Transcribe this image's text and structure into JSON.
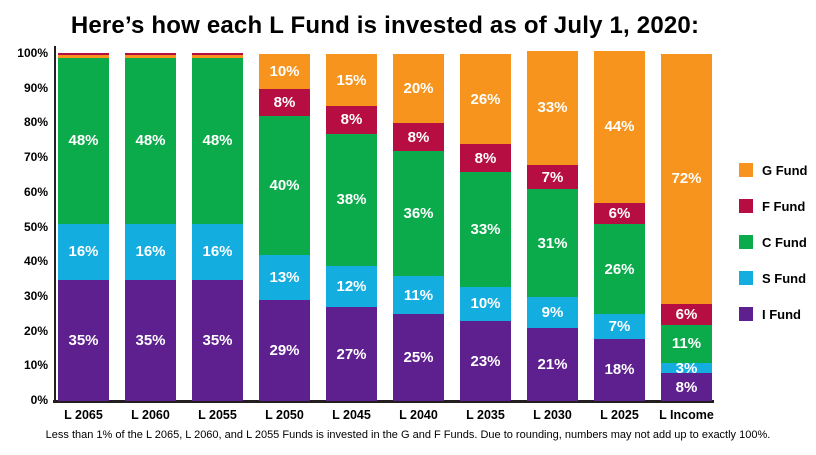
{
  "title": "Here’s how each L Fund is invested as of July 1, 2020:",
  "footnote": "Less than 1% of the L 2065, L 2060, and L 2055 Funds is invested in the G and F Funds. Due to rounding, numbers may not add up to exactly 100%.",
  "colors": {
    "g_fund": "#F7941D",
    "f_fund": "#B60E42",
    "c_fund": "#0BAB4C",
    "s_fund": "#13ADE0",
    "i_fund": "#5E1F8F",
    "axis": "#231f20"
  },
  "y_axis": {
    "tick_values": [
      0,
      10,
      20,
      30,
      40,
      50,
      60,
      70,
      80,
      90,
      100
    ],
    "tick_labels": [
      "0%",
      "10%",
      "20%",
      "30%",
      "40%",
      "50%",
      "60%",
      "70%",
      "80%",
      "90%",
      "100%"
    ]
  },
  "legend": {
    "position": "right",
    "items": [
      {
        "label": "G Fund",
        "color": "#F7941D"
      },
      {
        "label": "F Fund",
        "color": "#B60E42"
      },
      {
        "label": "C Fund",
        "color": "#0BAB4C"
      },
      {
        "label": "S Fund",
        "color": "#13ADE0"
      },
      {
        "label": "I Fund",
        "color": "#5E1F8F"
      }
    ]
  },
  "chart_data": {
    "type": "bar",
    "stacked": true,
    "grid": false,
    "ylim": [
      0,
      100
    ],
    "title": "Here’s how each L Fund is invested as of July 1, 2020:",
    "xlabel": "",
    "ylabel": "",
    "categories": [
      "L 2065",
      "L 2060",
      "L 2055",
      "L 2050",
      "L 2045",
      "L 2040",
      "L 2035",
      "L 2030",
      "L 2025",
      "L Income"
    ],
    "series": [
      {
        "name": "I Fund",
        "color": "#5E1F8F",
        "values": [
          35,
          35,
          35,
          29,
          27,
          25,
          23,
          21,
          18,
          8
        ]
      },
      {
        "name": "S Fund",
        "color": "#13ADE0",
        "values": [
          16,
          16,
          16,
          13,
          12,
          11,
          10,
          9,
          7,
          3
        ]
      },
      {
        "name": "C Fund",
        "color": "#0BAB4C",
        "values": [
          48,
          48,
          48,
          40,
          38,
          36,
          33,
          31,
          26,
          11
        ]
      },
      {
        "name": "F Fund",
        "color": "#B60E42",
        "values": [
          0.7,
          0.7,
          0.7,
          8,
          8,
          8,
          8,
          7,
          6,
          6
        ]
      },
      {
        "name": "G Fund",
        "color": "#F7941D",
        "values": [
          0.7,
          0.7,
          0.7,
          10,
          15,
          20,
          26,
          33,
          44,
          72
        ]
      }
    ],
    "data_label_format": "{value}%",
    "min_labeled_value": 3
  }
}
